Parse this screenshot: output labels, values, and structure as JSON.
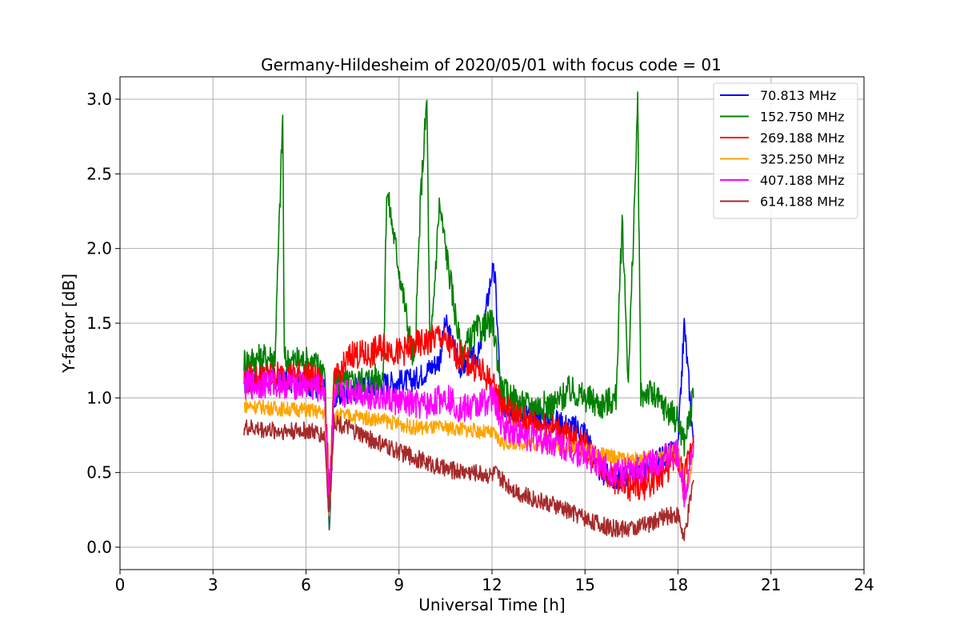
{
  "chart_data": {
    "type": "line",
    "title": "Germany-Hildesheim of 2020/05/01 with focus code = 01",
    "xlabel": "Universal Time [h]",
    "ylabel": "Y-factor [dB]",
    "xlim": [
      0,
      24
    ],
    "ylim": [
      -0.15,
      3.15
    ],
    "xticks": [
      0,
      3,
      6,
      9,
      12,
      15,
      18,
      21,
      24
    ],
    "xtick_labels": [
      "0",
      "3",
      "6",
      "9",
      "12",
      "15",
      "18",
      "21",
      "24"
    ],
    "yticks": [
      0.0,
      0.5,
      1.0,
      1.5,
      2.0,
      2.5,
      3.0
    ],
    "ytick_labels": [
      "0.0",
      "0.5",
      "1.0",
      "1.5",
      "2.0",
      "2.5",
      "3.0"
    ],
    "grid": true,
    "legend_position": "top-right",
    "series": [
      {
        "name": " 70.813 MHz",
        "color": "#0000ff",
        "x": [
          4.0,
          5.0,
          6.0,
          6.6,
          6.75,
          6.9,
          7.5,
          8.5,
          9.5,
          10.3,
          10.5,
          11.0,
          11.6,
          12.0,
          12.1,
          12.3,
          13.0,
          14.0,
          15.0,
          15.5,
          16.0,
          16.5,
          17.0,
          17.5,
          18.0,
          18.2,
          18.5
        ],
        "y": [
          1.1,
          1.12,
          1.1,
          1.05,
          0.08,
          1.0,
          1.05,
          1.1,
          1.12,
          1.25,
          1.5,
          1.2,
          1.3,
          1.85,
          1.8,
          0.95,
          0.9,
          0.85,
          0.78,
          0.5,
          0.45,
          0.5,
          0.55,
          0.6,
          0.65,
          1.5,
          0.7
        ]
      },
      {
        "name": "152.750 MHz",
        "color": "#008000",
        "x": [
          4.0,
          5.0,
          5.25,
          5.3,
          6.0,
          6.6,
          6.75,
          6.9,
          7.5,
          8.5,
          8.6,
          9.5,
          9.7,
          9.9,
          10.0,
          10.3,
          11.0,
          11.5,
          12.0,
          12.1,
          12.3,
          13.0,
          14.0,
          14.5,
          15.0,
          15.5,
          16.0,
          16.2,
          16.4,
          16.7,
          16.8,
          17.0,
          17.5,
          18.0,
          18.2,
          18.5
        ],
        "y": [
          1.25,
          1.28,
          2.9,
          1.25,
          1.25,
          1.2,
          0.15,
          1.1,
          1.1,
          1.15,
          2.4,
          1.2,
          2.35,
          3.0,
          1.25,
          2.3,
          1.3,
          1.45,
          1.5,
          1.4,
          1.05,
          0.95,
          0.95,
          1.05,
          1.0,
          0.95,
          1.0,
          2.2,
          1.1,
          2.95,
          1.0,
          1.05,
          0.95,
          0.85,
          0.7,
          1.0
        ]
      },
      {
        "name": "269.188 MHz",
        "color": "#ff0000",
        "x": [
          4.0,
          5.0,
          6.0,
          6.6,
          6.75,
          6.9,
          7.5,
          8.0,
          8.5,
          9.0,
          9.5,
          10.0,
          10.3,
          10.8,
          11.5,
          12.0,
          12.1,
          12.3,
          13.0,
          14.0,
          15.0,
          15.5,
          16.0,
          16.5,
          17.0,
          17.5,
          18.0,
          18.2,
          18.5
        ],
        "y": [
          1.12,
          1.15,
          1.15,
          1.1,
          0.35,
          1.1,
          1.3,
          1.28,
          1.35,
          1.3,
          1.35,
          1.38,
          1.42,
          1.3,
          1.2,
          1.1,
          1.05,
          0.95,
          0.85,
          0.8,
          0.68,
          0.55,
          0.45,
          0.4,
          0.42,
          0.5,
          0.6,
          0.45,
          0.75
        ]
      },
      {
        "name": "325.250 MHz",
        "color": "#ffa500",
        "x": [
          4.0,
          5.0,
          6.0,
          6.6,
          6.75,
          6.9,
          7.5,
          8.5,
          9.5,
          10.5,
          11.5,
          12.0,
          12.1,
          12.3,
          13.0,
          14.0,
          15.0,
          16.0,
          16.5,
          17.0,
          17.5,
          18.0,
          18.2,
          18.5
        ],
        "y": [
          0.95,
          0.93,
          0.92,
          0.9,
          0.2,
          0.88,
          0.88,
          0.85,
          0.8,
          0.8,
          0.78,
          0.76,
          0.75,
          0.7,
          0.7,
          0.68,
          0.65,
          0.6,
          0.58,
          0.6,
          0.62,
          0.65,
          0.3,
          0.6
        ]
      },
      {
        "name": "407.188 MHz",
        "color": "#ff00ff",
        "x": [
          4.0,
          5.0,
          6.0,
          6.6,
          6.75,
          6.9,
          7.5,
          8.5,
          9.5,
          10.0,
          10.5,
          11.0,
          11.5,
          12.0,
          12.1,
          12.3,
          13.0,
          14.0,
          15.0,
          15.5,
          16.0,
          16.5,
          17.0,
          17.5,
          18.0,
          18.2,
          18.5
        ],
        "y": [
          1.08,
          1.1,
          1.08,
          1.05,
          0.3,
          1.0,
          1.05,
          1.0,
          0.95,
          0.95,
          1.02,
          0.92,
          0.95,
          1.0,
          0.98,
          0.82,
          0.75,
          0.7,
          0.62,
          0.55,
          0.5,
          0.5,
          0.55,
          0.6,
          0.62,
          0.35,
          0.7
        ]
      },
      {
        "name": "614.188 MHz",
        "color": "#a52a2a",
        "x": [
          4.0,
          5.0,
          6.0,
          6.6,
          6.75,
          6.9,
          7.5,
          8.5,
          9.5,
          10.5,
          11.5,
          12.0,
          12.1,
          12.3,
          13.0,
          14.0,
          15.0,
          15.5,
          16.0,
          16.5,
          17.0,
          17.5,
          18.0,
          18.2,
          18.5
        ],
        "y": [
          0.8,
          0.78,
          0.78,
          0.75,
          0.2,
          0.85,
          0.78,
          0.68,
          0.6,
          0.52,
          0.5,
          0.48,
          0.5,
          0.45,
          0.35,
          0.28,
          0.2,
          0.15,
          0.12,
          0.13,
          0.15,
          0.2,
          0.22,
          0.05,
          0.45
        ]
      }
    ]
  }
}
